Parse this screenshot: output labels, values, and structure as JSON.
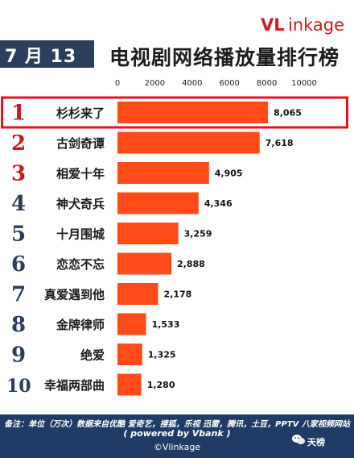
{
  "brand": {
    "logo_text": "VLinkage",
    "logo_main": "VL",
    "logo_rest": "inkage"
  },
  "header": {
    "date": "7 月 13 日",
    "title": "电视剧网络播放量排行榜"
  },
  "chart_data": {
    "type": "bar",
    "orientation": "horizontal",
    "xlim": [
      0,
      10000
    ],
    "ticks": [
      0,
      2000,
      4000,
      6000,
      8000,
      10000
    ],
    "ranks": [
      "1",
      "2",
      "3",
      "4",
      "5",
      "6",
      "7",
      "8",
      "9",
      "10"
    ],
    "categories": [
      "杉杉来了",
      "古剑奇谭",
      "相爱十年",
      "神犬奇兵",
      "十月围城",
      "恋恋不忘",
      "真爱遇到他",
      "金牌律师",
      "绝爱",
      "幸福两部曲"
    ],
    "values": [
      8065,
      7618,
      4905,
      4346,
      3259,
      2888,
      2178,
      1533,
      1325,
      1280
    ],
    "value_labels": [
      "8,065",
      "7,618",
      "4,905",
      "4,346",
      "3,259",
      "2,888",
      "2,178",
      "1,533",
      "1,325",
      "1,280"
    ],
    "bar_color": "#ff4a1a",
    "rank_color_top3": "#c8181e",
    "rank_color_rest": "#2c3e5c",
    "highlight_color": "#e3131b",
    "highlight_index": 0
  },
  "footer": {
    "note": "备注：单位（万次）数据来自优酷 爱奇艺，搜狐，乐视  迅雷，腾讯，土豆，PPTV 八家视频网站",
    "powered": "( powered by Vbank )",
    "copyright": "©Vlinkage"
  },
  "watermark": {
    "text": "天榜",
    "icon": "wechat-icon"
  }
}
